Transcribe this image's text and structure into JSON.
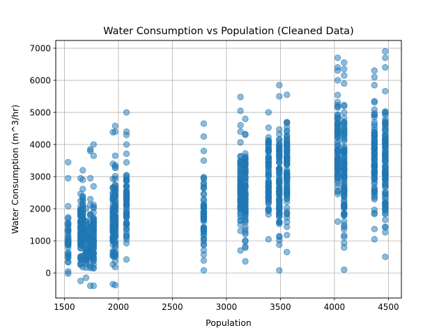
{
  "chart_data": {
    "type": "scatter",
    "title": "Water Consumption vs Population (Cleaned Data)",
    "xlabel": "Population",
    "ylabel": "Water Consumption (m^3/hr)",
    "xlim": [
      1420,
      4620
    ],
    "ylim": [
      -780,
      7240
    ],
    "xticks": [
      1500,
      2000,
      2500,
      3000,
      3500,
      4000,
      4500
    ],
    "yticks": [
      0,
      1000,
      2000,
      3000,
      4000,
      5000,
      6000,
      7000
    ],
    "grid": true,
    "marker_color": "#1f77b4",
    "marker_alpha": 0.5,
    "columns": [
      {
        "x": 1535,
        "min": -20,
        "max": 2080,
        "outliers": [
          2950,
          3450
        ]
      },
      {
        "x": 1650,
        "min": -250,
        "max": 2950,
        "outliers": []
      },
      {
        "x": 1670,
        "min": 180,
        "max": 2900,
        "outliers": [
          3200
        ]
      },
      {
        "x": 1700,
        "min": -150,
        "max": 2000,
        "outliers": []
      },
      {
        "x": 1740,
        "min": -400,
        "max": 2300,
        "outliers": [
          2950,
          3800,
          3850
        ]
      },
      {
        "x": 1770,
        "min": -400,
        "max": 2700,
        "outliers": [
          3650,
          4000
        ]
      },
      {
        "x": 1950,
        "min": -350,
        "max": 3400,
        "outliers": [
          4380
        ]
      },
      {
        "x": 1970,
        "min": -380,
        "max": 3650,
        "outliers": [
          4400,
          4580
        ]
      },
      {
        "x": 2075,
        "min": 420,
        "max": 4000,
        "outliers": [
          4300,
          4400,
          5000
        ]
      },
      {
        "x": 2790,
        "min": 80,
        "max": 3500,
        "outliers": [
          3800,
          4250,
          4650
        ]
      },
      {
        "x": 3130,
        "min": 700,
        "max": 4400,
        "outliers": [
          4600,
          5050,
          5480
        ]
      },
      {
        "x": 3175,
        "min": 360,
        "max": 4800,
        "outliers": []
      },
      {
        "x": 3390,
        "min": 1050,
        "max": 5000,
        "outliers": []
      },
      {
        "x": 3490,
        "min": 80,
        "max": 5500,
        "outliers": [
          5850
        ]
      },
      {
        "x": 3560,
        "min": 650,
        "max": 5550,
        "outliers": []
      },
      {
        "x": 4030,
        "min": 1600,
        "max": 6000,
        "outliers": [
          6300,
          6400,
          6700
        ]
      },
      {
        "x": 4090,
        "min": 100,
        "max": 5900,
        "outliers": [
          6150,
          6350,
          6550
        ]
      },
      {
        "x": 4370,
        "min": 1050,
        "max": 5850,
        "outliers": [
          6100,
          6300
        ]
      },
      {
        "x": 4470,
        "min": 500,
        "max": 6400,
        "outliers": [
          6700,
          6900
        ]
      }
    ]
  }
}
